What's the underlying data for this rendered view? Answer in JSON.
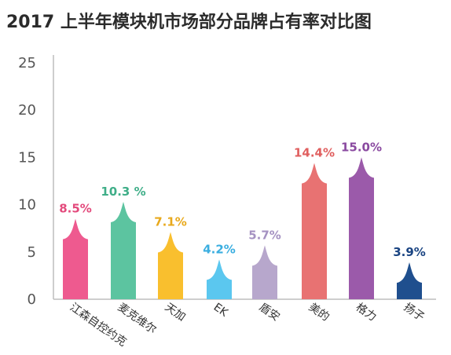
{
  "title": "2017 上半年模块机市场部分品牌占有率对比图",
  "chart_data": {
    "type": "bar",
    "title": "2017 上半年模块机市场部分品牌占有率对比图",
    "xlabel": "",
    "ylabel": "",
    "ylim": [
      0,
      25
    ],
    "yticks": [
      0,
      5,
      10,
      15,
      20,
      25
    ],
    "grid": false,
    "categories": [
      "江森自控约克",
      "麦克维尔",
      "天加",
      "EK",
      "盾安",
      "美的",
      "格力",
      "扬子"
    ],
    "values": [
      8.5,
      10.3,
      7.1,
      4.2,
      5.7,
      14.4,
      15.0,
      3.9
    ],
    "data_labels": [
      "8.5%",
      "10.3 %",
      "7.1%",
      "4.2%",
      "5.7%",
      "14.4%",
      "15.0%",
      "3.9%"
    ],
    "colors": [
      "#ee5a8f",
      "#5cc4a0",
      "#f9bf2e",
      "#5bc7ef",
      "#b7a7cc",
      "#e87272",
      "#9b5aaa",
      "#1f4f8e"
    ],
    "label_colors": [
      "#e34a7c",
      "#3fae88",
      "#e8a91c",
      "#3aaee0",
      "#a592c2",
      "#e05f5f",
      "#8a4aa0",
      "#1a4482"
    ]
  }
}
